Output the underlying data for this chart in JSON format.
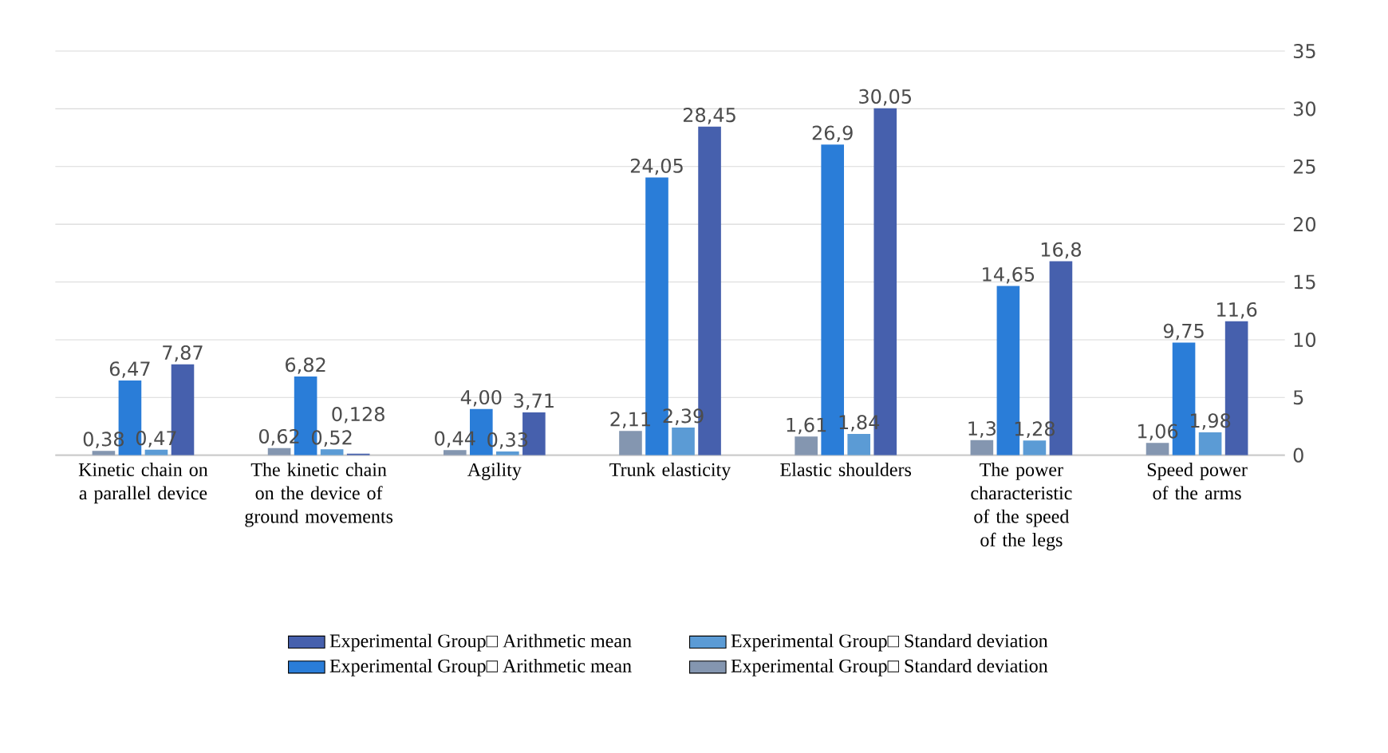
{
  "chart_data": {
    "type": "bar",
    "categories": [
      "Kinetic chain on a parallel device",
      "The kinetic chain on the device of ground movements",
      "Agility",
      "Trunk elasticity",
      "Elastic shoulders",
      "The power characteristic of the speed of the legs",
      "Speed power of the arms"
    ],
    "series": [
      {
        "name": "Experimental Group□ Arithmetic mean",
        "color": "#4660ad",
        "values": [
          7.87,
          0.128,
          3.71,
          28.45,
          30.05,
          16.8,
          11.6
        ],
        "value_labels": [
          "7,87",
          "0,128",
          "3,71",
          "28,45",
          "30,05",
          "16,8",
          "11,6"
        ]
      },
      {
        "name": "Experimental Group□ Standard deviation",
        "color": "#5b9bd5",
        "values": [
          0.47,
          0.52,
          0.33,
          2.39,
          1.84,
          1.28,
          1.98
        ],
        "value_labels": [
          "0,47",
          "0,52",
          "0,33",
          "2,39",
          "1,84",
          "1,28",
          "1,98"
        ]
      },
      {
        "name": "Experimental Group□ Arithmetic mean",
        "color": "#2a7dd8",
        "values": [
          6.47,
          6.82,
          4.0,
          24.05,
          26.9,
          14.65,
          9.75
        ],
        "value_labels": [
          "6,47",
          "6,82",
          "4,00",
          "24,05",
          "26,9",
          "14,65",
          "9,75"
        ]
      },
      {
        "name": "Experimental Group□ Standard deviation",
        "color": "#8496b0",
        "values": [
          0.38,
          0.62,
          0.44,
          2.11,
          1.61,
          1.3,
          1.06
        ],
        "value_labels": [
          "0,38",
          "0,62",
          "0,44",
          "2,11",
          "1,61",
          "1,3",
          "1,06"
        ]
      }
    ],
    "ylim": [
      0,
      35
    ],
    "yticks": [
      0,
      5,
      10,
      15,
      20,
      25,
      30,
      35
    ],
    "grid": "y",
    "legend": "bottom"
  }
}
